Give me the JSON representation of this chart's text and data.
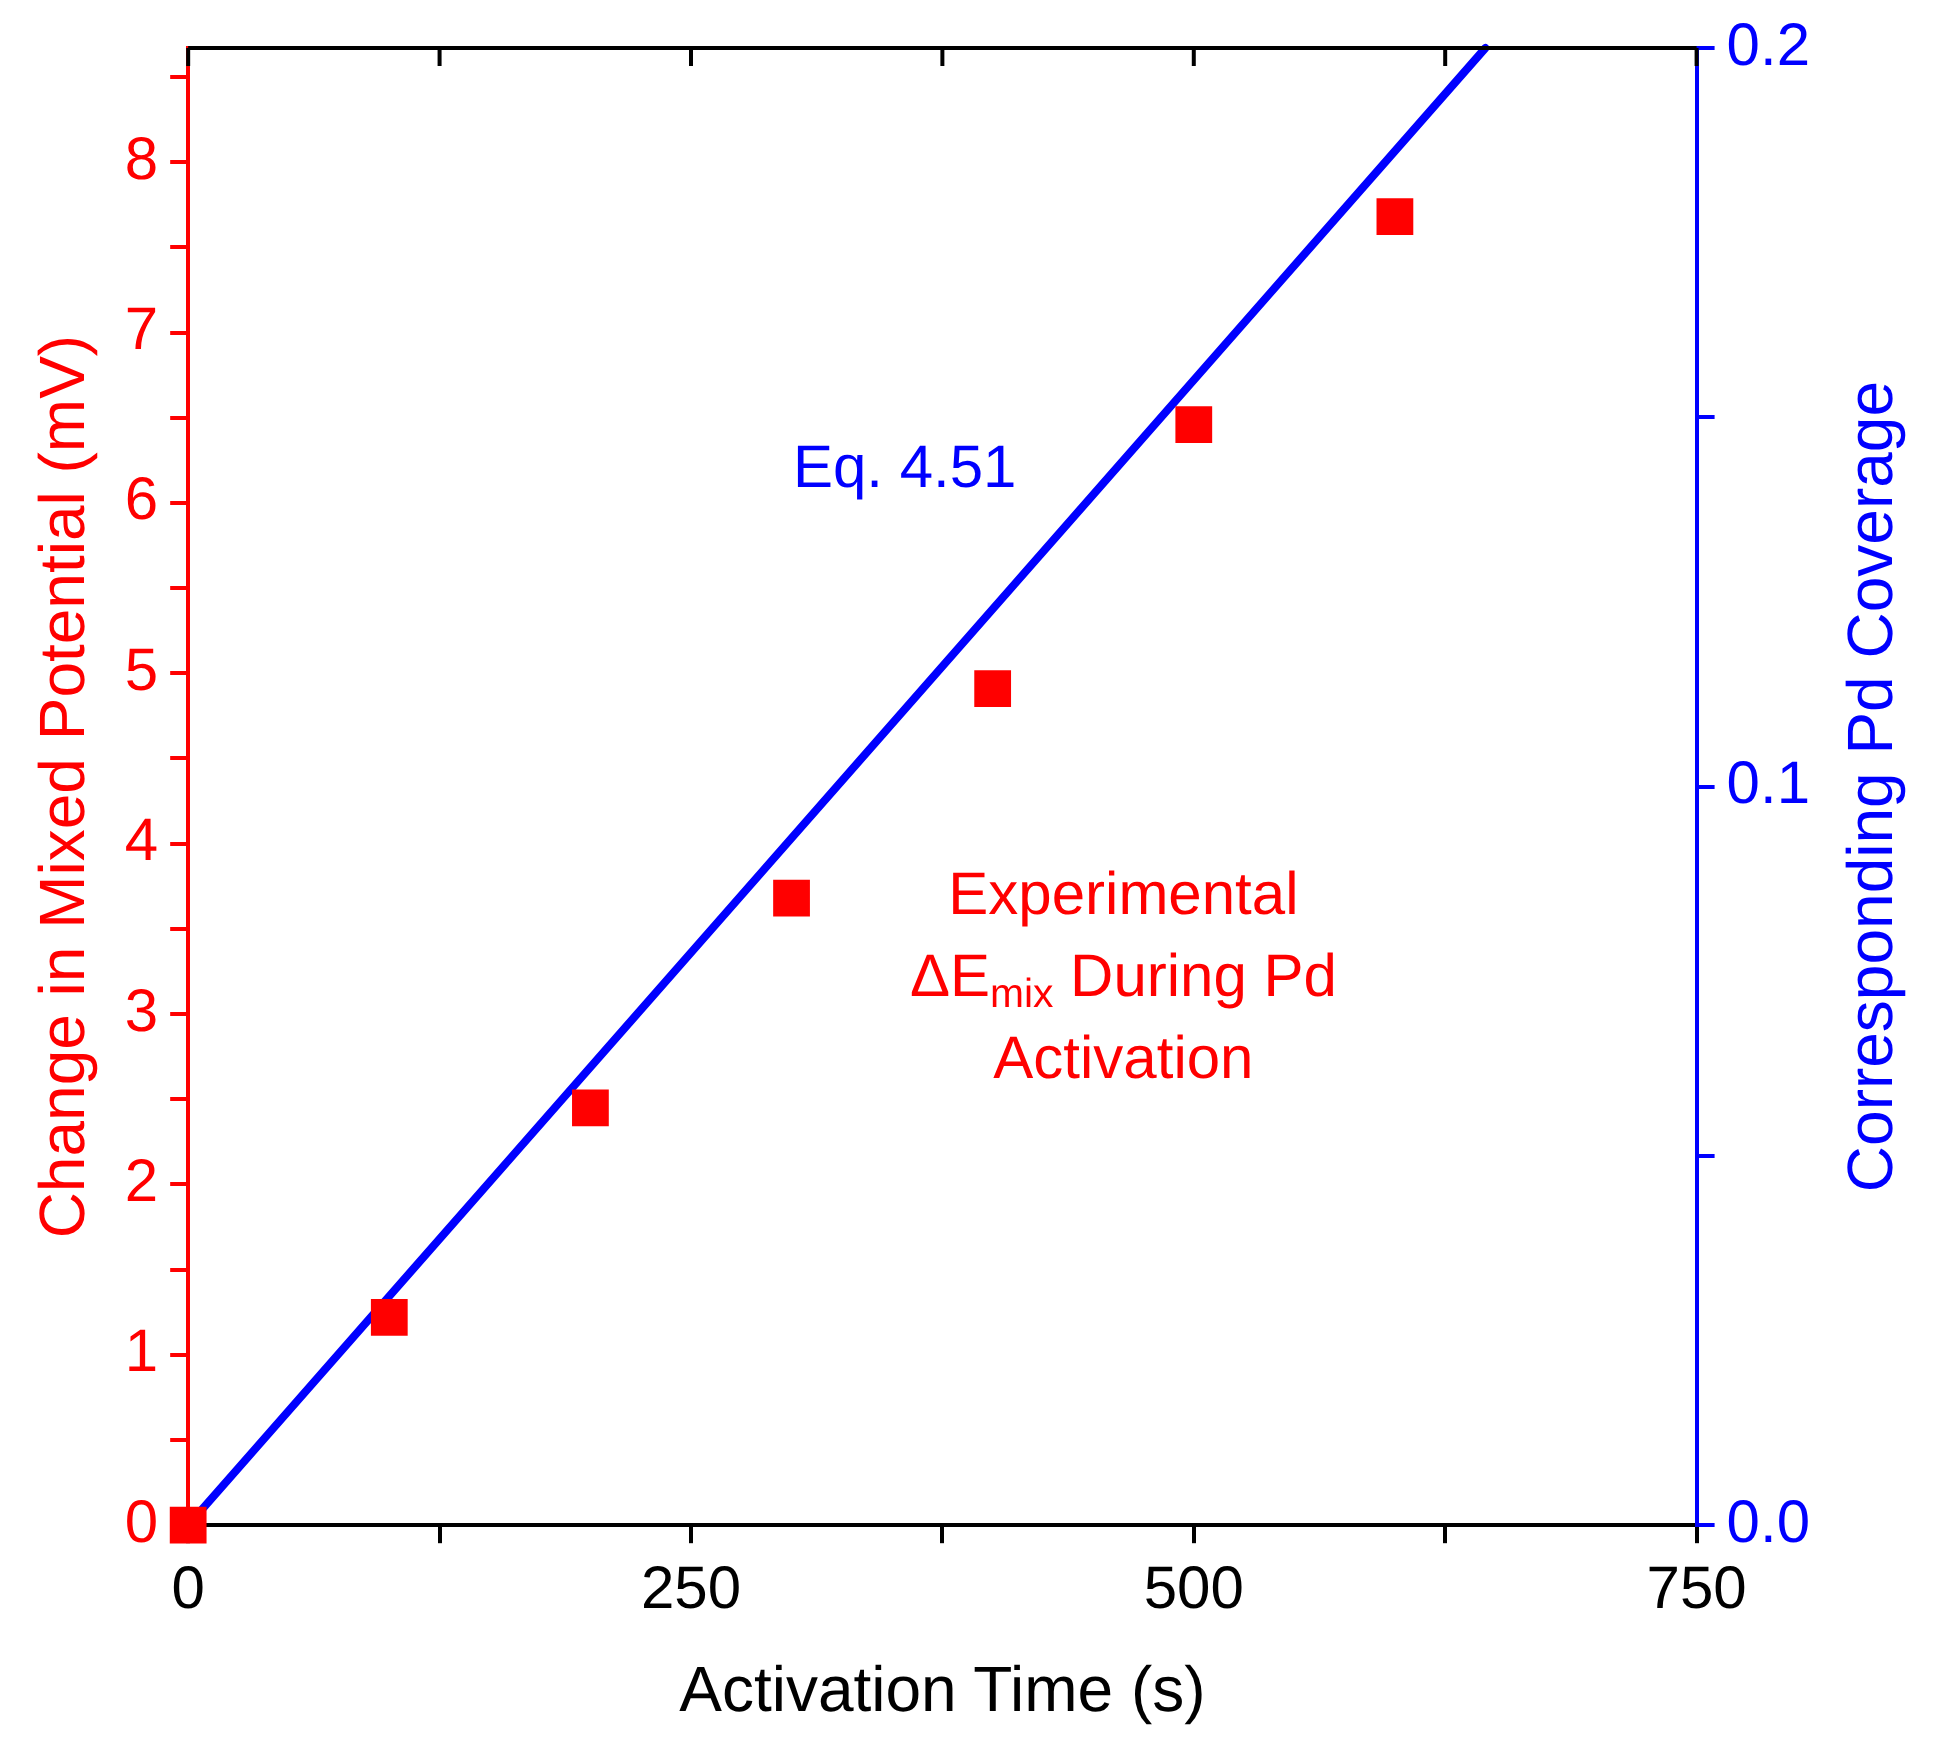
{
  "chart_data": {
    "type": "scatter",
    "xlabel": "Activation Time (s)",
    "ylabel": "Change in Mixed Potential (mV)",
    "y2label": "Corresponding Pd Coverage",
    "xlim": [
      0,
      750
    ],
    "xticks": [
      0,
      {
        "value": 125,
        "label": null
      },
      250,
      {
        "value": 375,
        "label": null
      },
      500,
      {
        "value": 625,
        "label": null
      },
      750
    ],
    "ylim": [
      0,
      8.67
    ],
    "yticks": [
      0,
      {
        "value": 0.5,
        "label": null
      },
      1,
      {
        "value": 1.5,
        "label": null
      },
      2,
      {
        "value": 2.5,
        "label": null
      },
      3,
      {
        "value": 3.5,
        "label": null
      },
      4,
      {
        "value": 4.5,
        "label": null
      },
      5,
      {
        "value": 5.5,
        "label": null
      },
      6,
      {
        "value": 6.5,
        "label": null
      },
      7,
      {
        "value": 7.5,
        "label": null
      },
      8,
      {
        "value": 8.5,
        "label": null
      }
    ],
    "y2lim": [
      0,
      0.2
    ],
    "y2ticks": [
      {
        "value": 0,
        "label": "0.0"
      },
      {
        "value": 0.05,
        "label": null
      },
      0.1,
      {
        "value": 0.15,
        "label": null
      },
      0.2
    ],
    "legend": false,
    "series": [
      {
        "name": "Experimental ΔE$_{mix}$ During Pd Activation",
        "type": "scatter",
        "marker": "square",
        "color": "#ff0000",
        "x": [
          0,
          100,
          200,
          300,
          400,
          500,
          600
        ],
        "values": [
          0,
          1.22,
          2.45,
          3.68,
          4.91,
          6.46,
          7.68
        ]
      },
      {
        "name": "Eq. 4.51",
        "type": "line",
        "marker": "none",
        "axis": "y2",
        "color": "#0000ff",
        "x": [
          0,
          645
        ],
        "values": [
          0,
          0.2
        ]
      }
    ]
  }
}
